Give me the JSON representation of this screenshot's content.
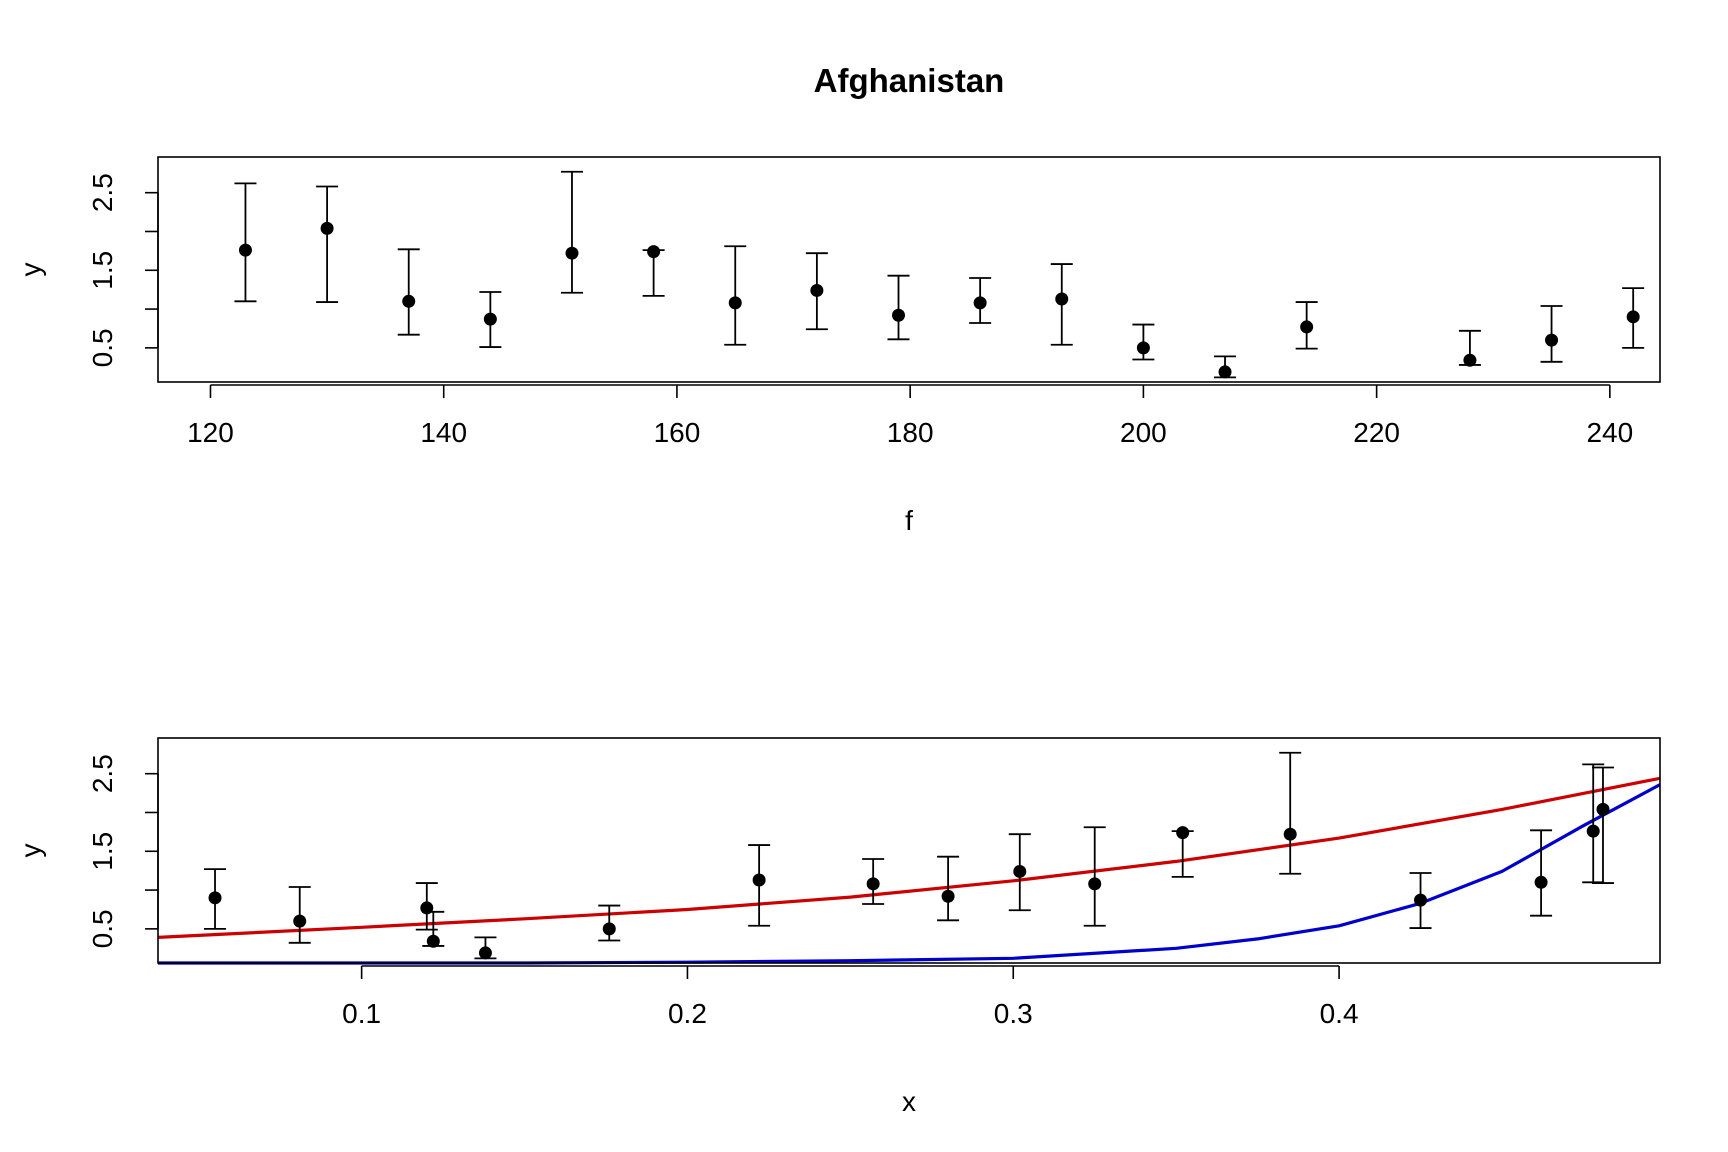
{
  "chart_data": [
    {
      "type": "scatter",
      "title": "Afghanistan",
      "xlabel": "f",
      "ylabel": "y",
      "xlim": [
        115.5,
        244.3
      ],
      "ylim": [
        0.06,
        2.96
      ],
      "x_ticks": [
        120,
        140,
        160,
        180,
        200,
        220,
        240
      ],
      "x_tick_labels": [
        "120",
        "140",
        "160",
        "180",
        "200",
        "220",
        "240"
      ],
      "y_ticks": [
        0.5,
        1.0,
        1.5,
        2.0,
        2.5
      ],
      "y_tick_labels": [
        "0.5",
        "",
        "1.5",
        "",
        "2.5"
      ],
      "grid": false,
      "points": [
        {
          "x": 123,
          "y": 1.76,
          "lo": 1.1,
          "hi": 2.62
        },
        {
          "x": 130,
          "y": 2.04,
          "lo": 1.09,
          "hi": 2.58
        },
        {
          "x": 137,
          "y": 1.1,
          "lo": 0.67,
          "hi": 1.77
        },
        {
          "x": 144,
          "y": 0.87,
          "lo": 0.51,
          "hi": 1.22
        },
        {
          "x": 151,
          "y": 1.72,
          "lo": 1.21,
          "hi": 2.77
        },
        {
          "x": 158,
          "y": 1.74,
          "lo": 1.17,
          "hi": 1.76
        },
        {
          "x": 165,
          "y": 1.08,
          "lo": 0.54,
          "hi": 1.81
        },
        {
          "x": 172,
          "y": 1.24,
          "lo": 0.74,
          "hi": 1.72
        },
        {
          "x": 179,
          "y": 0.92,
          "lo": 0.61,
          "hi": 1.43
        },
        {
          "x": 186,
          "y": 1.08,
          "lo": 0.82,
          "hi": 1.4
        },
        {
          "x": 193,
          "y": 1.13,
          "lo": 0.54,
          "hi": 1.58
        },
        {
          "x": 200,
          "y": 0.5,
          "lo": 0.35,
          "hi": 0.8
        },
        {
          "x": 207,
          "y": 0.19,
          "lo": 0.12,
          "hi": 0.39
        },
        {
          "x": 214,
          "y": 0.77,
          "lo": 0.49,
          "hi": 1.09
        },
        {
          "x": 228,
          "y": 0.34,
          "lo": 0.28,
          "hi": 0.72
        },
        {
          "x": 235,
          "y": 0.6,
          "lo": 0.32,
          "hi": 1.04
        },
        {
          "x": 242,
          "y": 0.9,
          "lo": 0.5,
          "hi": 1.27
        }
      ]
    },
    {
      "type": "scatter",
      "xlabel": "x",
      "ylabel": "y",
      "xlim": [
        0.0375,
        0.4985
      ],
      "ylim": [
        0.06,
        2.96
      ],
      "x_ticks": [
        0.1,
        0.2,
        0.3,
        0.4
      ],
      "x_tick_labels": [
        "0.1",
        "0.2",
        "0.3",
        "0.4"
      ],
      "y_ticks": [
        0.5,
        1.0,
        1.5,
        2.0,
        2.5
      ],
      "y_tick_labels": [
        "0.5",
        "",
        "1.5",
        "",
        "2.5"
      ],
      "grid": false,
      "points": [
        {
          "x": 0.055,
          "y": 0.9,
          "lo": 0.5,
          "hi": 1.27
        },
        {
          "x": 0.081,
          "y": 0.6,
          "lo": 0.32,
          "hi": 1.04
        },
        {
          "x": 0.12,
          "y": 0.77,
          "lo": 0.49,
          "hi": 1.09
        },
        {
          "x": 0.122,
          "y": 0.34,
          "lo": 0.28,
          "hi": 0.72
        },
        {
          "x": 0.138,
          "y": 0.19,
          "lo": 0.12,
          "hi": 0.39
        },
        {
          "x": 0.176,
          "y": 0.5,
          "lo": 0.35,
          "hi": 0.8
        },
        {
          "x": 0.222,
          "y": 1.13,
          "lo": 0.54,
          "hi": 1.58
        },
        {
          "x": 0.257,
          "y": 1.08,
          "lo": 0.82,
          "hi": 1.4
        },
        {
          "x": 0.28,
          "y": 0.92,
          "lo": 0.61,
          "hi": 1.43
        },
        {
          "x": 0.302,
          "y": 1.24,
          "lo": 0.74,
          "hi": 1.72
        },
        {
          "x": 0.325,
          "y": 1.08,
          "lo": 0.54,
          "hi": 1.81
        },
        {
          "x": 0.352,
          "y": 1.74,
          "lo": 1.17,
          "hi": 1.76
        },
        {
          "x": 0.385,
          "y": 1.72,
          "lo": 1.21,
          "hi": 2.77
        },
        {
          "x": 0.425,
          "y": 0.87,
          "lo": 0.51,
          "hi": 1.22
        },
        {
          "x": 0.462,
          "y": 1.1,
          "lo": 0.67,
          "hi": 1.77
        },
        {
          "x": 0.478,
          "y": 1.76,
          "lo": 1.1,
          "hi": 2.62
        },
        {
          "x": 0.481,
          "y": 2.04,
          "lo": 1.09,
          "hi": 2.58
        }
      ],
      "series": [
        {
          "color": "#cc0000",
          "x": [
            0.0375,
            0.1,
            0.15,
            0.2,
            0.25,
            0.3,
            0.35,
            0.4,
            0.45,
            0.4985
          ],
          "y": [
            0.39,
            0.52,
            0.63,
            0.75,
            0.91,
            1.12,
            1.37,
            1.67,
            2.04,
            2.44
          ]
        },
        {
          "color": "#0000cc",
          "x": [
            0.0375,
            0.15,
            0.2,
            0.25,
            0.3,
            0.35,
            0.375,
            0.4,
            0.425,
            0.45,
            0.475,
            0.4985
          ],
          "y": [
            0.06,
            0.06,
            0.07,
            0.09,
            0.12,
            0.25,
            0.37,
            0.54,
            0.83,
            1.24,
            1.83,
            2.36
          ]
        }
      ]
    }
  ]
}
